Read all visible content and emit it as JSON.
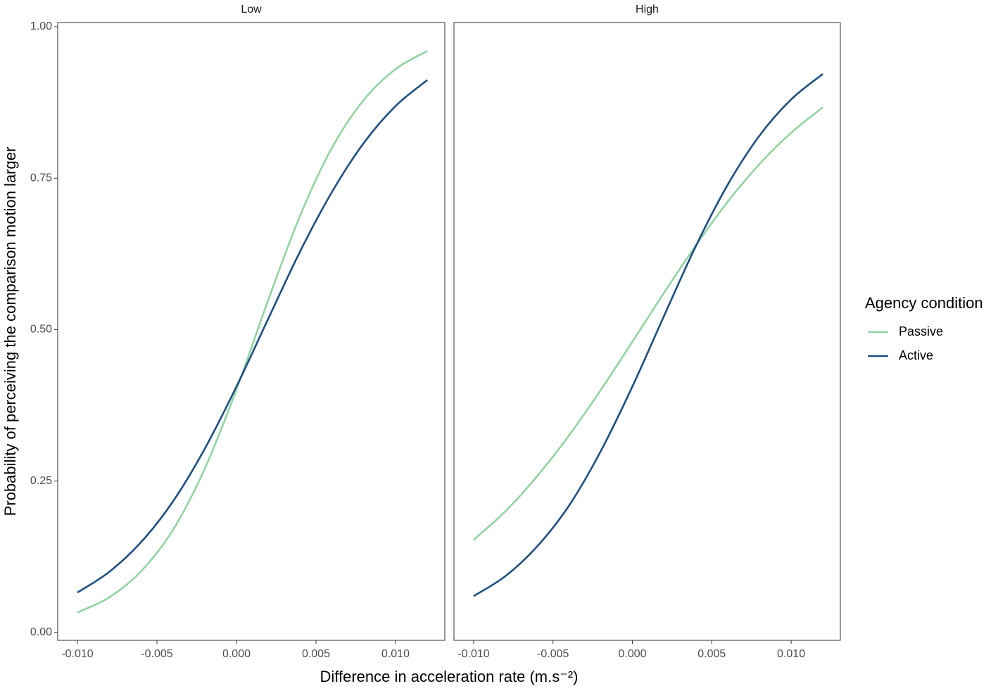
{
  "chart_data": {
    "type": "line",
    "xlabel": "Difference in acceleration rate (m.s⁻²)",
    "ylabel": "Probability of perceiving the comparison motion larger",
    "legend_title": "Agency condition",
    "legend": "right",
    "x": [
      -0.01,
      -0.008,
      -0.006,
      -0.004,
      -0.002,
      0.0,
      0.002,
      0.004,
      0.006,
      0.008,
      0.01,
      0.012
    ],
    "xlim": [
      -0.01124,
      0.0131
    ],
    "xticks": [
      {
        "value": -0.01,
        "label": "-0.010"
      },
      {
        "value": -0.005,
        "label": "-0.005"
      },
      {
        "value": 0,
        "label": "0.000"
      },
      {
        "value": 0.005,
        "label": "0.005"
      },
      {
        "value": 0.01,
        "label": "0.010"
      }
    ],
    "ylim": [
      -0.013,
      1.007
    ],
    "yticks": [
      {
        "value": 0,
        "label": "0.00"
      },
      {
        "value": 0.25,
        "label": "0.25"
      },
      {
        "value": 0.5,
        "label": "0.50"
      },
      {
        "value": 0.75,
        "label": "0.75"
      },
      {
        "value": 1,
        "label": "1.00"
      }
    ],
    "facets": [
      {
        "title": "Low",
        "series": [
          {
            "name": "Passive",
            "color": "#93d3a2",
            "values": [
              0.033,
              0.058,
              0.101,
              0.169,
              0.27,
              0.401,
              0.549,
              0.688,
              0.8,
              0.879,
              0.93,
              0.96
            ]
          },
          {
            "name": "Active",
            "color": "#1f4e80",
            "values": [
              0.066,
              0.1,
              0.149,
              0.216,
              0.303,
              0.406,
              0.518,
              0.629,
              0.727,
              0.808,
              0.869,
              0.912
            ]
          }
        ]
      },
      {
        "title": "High",
        "series": [
          {
            "name": "Passive",
            "color": "#93d3a2",
            "values": [
              0.153,
              0.2,
              0.258,
              0.325,
              0.4,
              0.48,
              0.561,
              0.639,
              0.711,
              0.773,
              0.825,
              0.867
            ]
          },
          {
            "name": "Active",
            "color": "#1f4e80",
            "values": [
              0.06,
              0.093,
              0.142,
              0.209,
              0.299,
              0.406,
              0.523,
              0.638,
              0.739,
              0.82,
              0.88,
              0.922
            ]
          }
        ]
      }
    ]
  }
}
